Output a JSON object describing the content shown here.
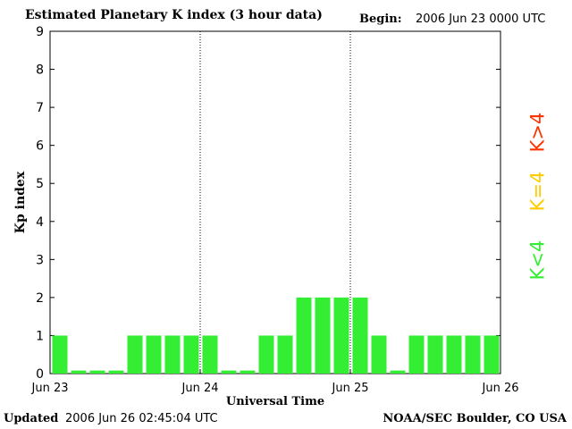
{
  "header": {
    "title": "Estimated Planetary K index (3 hour data)",
    "begin_label": "Begin:",
    "begin_value": "2006 Jun 23 0000 UTC"
  },
  "footer": {
    "updated_label": "Updated",
    "updated_value": "2006 Jun 26 02:45:04 UTC",
    "credit": "NOAA/SEC Boulder, CO USA"
  },
  "legend": [
    {
      "label": "K>4",
      "color": "#ff3300"
    },
    {
      "label": "K=4",
      "color": "#ffcc00"
    },
    {
      "label": "K<4",
      "color": "#33ee33"
    }
  ],
  "chart_data": {
    "type": "bar",
    "title": "Estimated Planetary K index (3 hour data)",
    "xlabel": "Universal Time",
    "ylabel": "Kp index",
    "ylim": [
      0,
      9
    ],
    "yticks": [
      "0",
      "1",
      "2",
      "3",
      "4",
      "5",
      "6",
      "7",
      "8",
      "9"
    ],
    "xticks": [
      "Jun 23",
      "Jun 24",
      "Jun 25",
      "Jun 26"
    ],
    "day_dividers": true,
    "bar_color": "#33ee33",
    "values": [
      1,
      0,
      0,
      0,
      1,
      1,
      1,
      1,
      1,
      0,
      0,
      1,
      1,
      2,
      2,
      2,
      2,
      1,
      0,
      1,
      1,
      1,
      1,
      1
    ]
  }
}
